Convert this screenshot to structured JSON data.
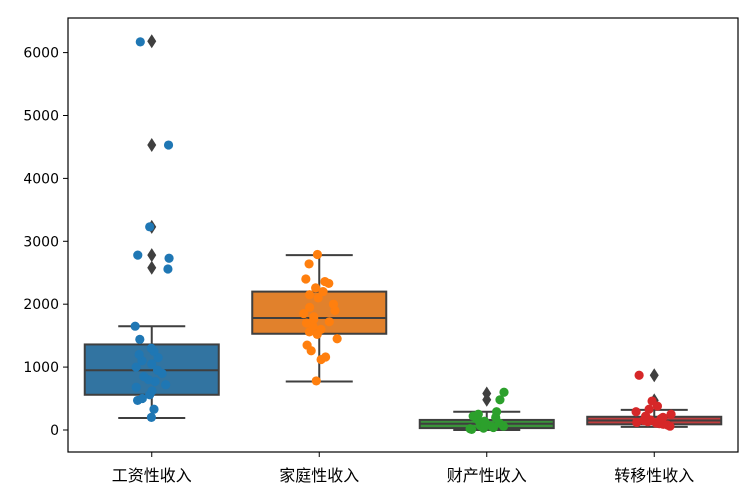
{
  "chart_data": {
    "type": "box",
    "title": "",
    "xlabel": "",
    "ylabel": "",
    "ylim": [
      -350,
      6550
    ],
    "yticks": [
      0,
      1000,
      2000,
      3000,
      4000,
      5000,
      6000
    ],
    "categories": [
      "工资性收入",
      "家庭性收入",
      "财产性收入",
      "转移性收入"
    ],
    "boxes": [
      {
        "category": "工资性收入",
        "color": "#3274a1",
        "point_color": "#1f77b4",
        "q1": 560,
        "median": 950,
        "q3": 1360,
        "whisker_low": 190,
        "whisker_high": 1650,
        "outliers": [
          2580,
          2780,
          3230,
          4530,
          6180
        ]
      },
      {
        "category": "家庭性收入",
        "color": "#e1812c",
        "point_color": "#ff7f0e",
        "q1": 1530,
        "median": 1780,
        "q3": 2200,
        "whisker_low": 770,
        "whisker_high": 2780,
        "outliers": []
      },
      {
        "category": "财产性收入",
        "color": "#3a923a",
        "point_color": "#2ca02c",
        "q1": 30,
        "median": 100,
        "q3": 160,
        "whisker_low": 0,
        "whisker_high": 290,
        "outliers": [
          480,
          580
        ]
      },
      {
        "category": "转移性收入",
        "color": "#c03d3e",
        "point_color": "#d62728",
        "q1": 90,
        "median": 150,
        "q3": 210,
        "whisker_low": 50,
        "whisker_high": 320,
        "outliers": [
          470,
          870
        ]
      }
    ],
    "strip_points": [
      [
        200,
        330,
        470,
        500,
        560,
        620,
        680,
        720,
        770,
        800,
        850,
        900,
        950,
        1000,
        1050,
        1100,
        1150,
        1200,
        1250,
        1300,
        1440,
        1650,
        2560,
        2730,
        2780,
        3230,
        4530,
        6170
      ],
      [
        780,
        1120,
        1160,
        1260,
        1350,
        1450,
        1520,
        1560,
        1600,
        1650,
        1700,
        1720,
        1760,
        1800,
        1850,
        1900,
        1950,
        2000,
        2100,
        2150,
        2200,
        2260,
        2330,
        2360,
        2400,
        2640,
        2790
      ],
      [
        10,
        20,
        30,
        40,
        50,
        60,
        70,
        80,
        90,
        100,
        110,
        120,
        140,
        160,
        180,
        200,
        220,
        250,
        290,
        480,
        600
      ],
      [
        60,
        80,
        90,
        100,
        110,
        120,
        130,
        140,
        150,
        160,
        180,
        200,
        220,
        250,
        290,
        330,
        380,
        460,
        870
      ]
    ],
    "grid": false,
    "legend": "none"
  }
}
